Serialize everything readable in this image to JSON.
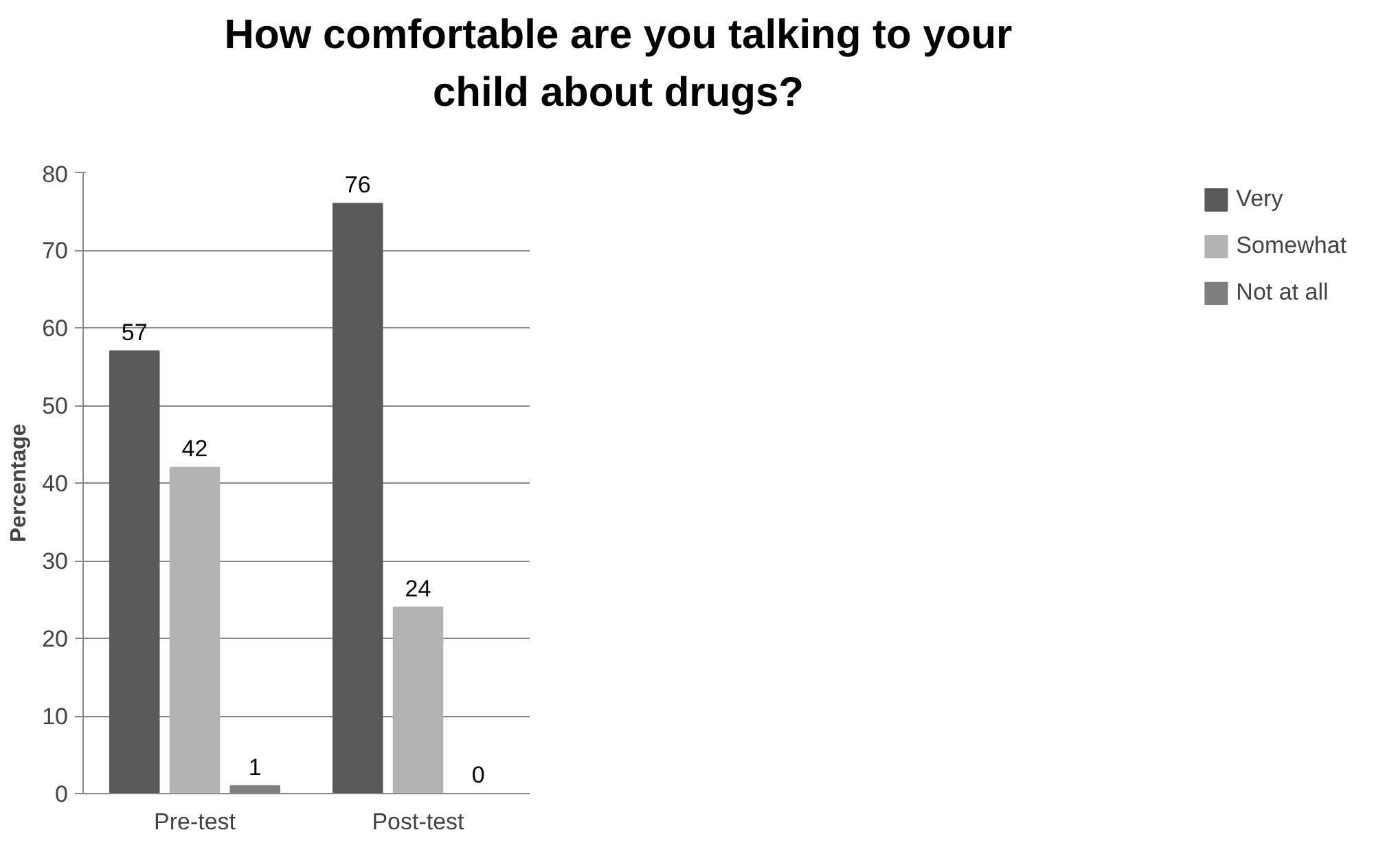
{
  "chart_data": {
    "type": "bar",
    "title": "How comfortable are you talking to your child about drugs?",
    "ylabel": "Percentage",
    "categories": [
      "Pre-test",
      "Post-test"
    ],
    "series": [
      {
        "name": "Very",
        "color": "#595959",
        "values": [
          57,
          76
        ]
      },
      {
        "name": "Somewhat",
        "color": "#b2b2b2",
        "values": [
          42,
          24
        ]
      },
      {
        "name": "Not at all",
        "color": "#7f7f7f",
        "values": [
          1,
          0
        ]
      }
    ],
    "ylim": [
      0,
      80
    ],
    "yticks": [
      0,
      10,
      20,
      30,
      40,
      50,
      60,
      70,
      80
    ],
    "grid": "y",
    "legend": "right",
    "data_labels": true
  }
}
